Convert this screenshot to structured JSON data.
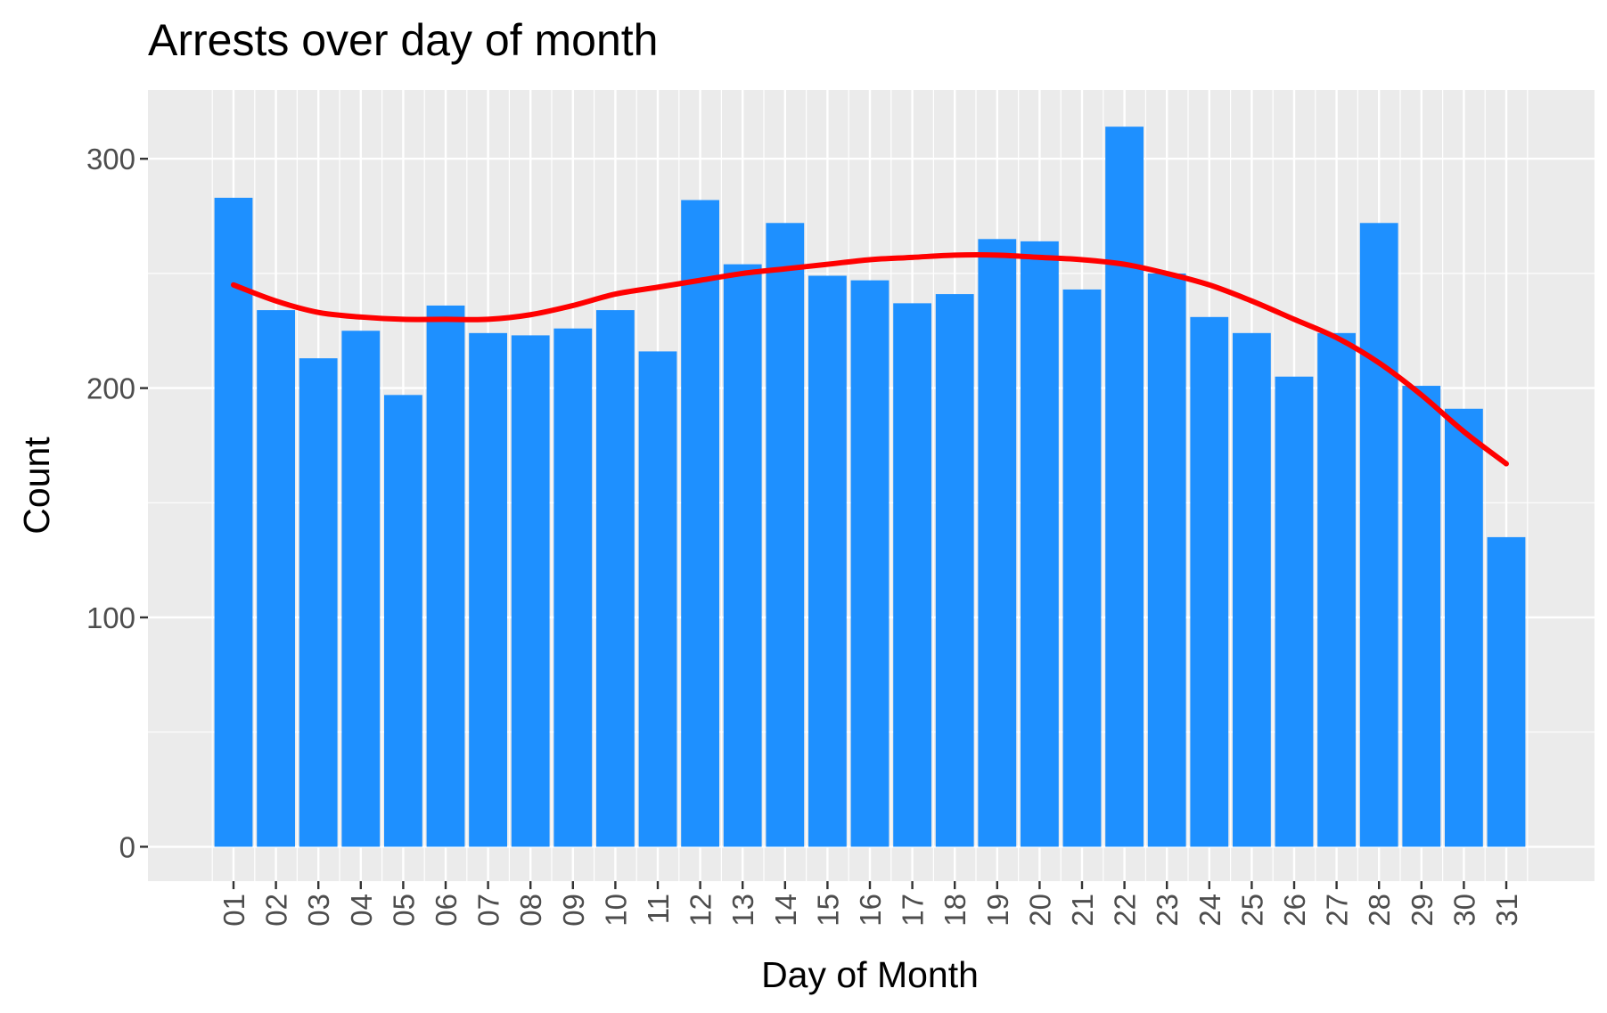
{
  "chart_data": {
    "type": "bar",
    "title": "Arrests over day of month",
    "xlabel": "Day of Month",
    "ylabel": "Count",
    "categories": [
      "01",
      "02",
      "03",
      "04",
      "05",
      "06",
      "07",
      "08",
      "09",
      "10",
      "11",
      "12",
      "13",
      "14",
      "15",
      "16",
      "17",
      "18",
      "19",
      "20",
      "21",
      "22",
      "23",
      "24",
      "25",
      "26",
      "27",
      "28",
      "29",
      "30",
      "31"
    ],
    "values": [
      283,
      234,
      213,
      225,
      197,
      236,
      224,
      223,
      226,
      234,
      216,
      282,
      254,
      272,
      249,
      247,
      237,
      241,
      265,
      264,
      243,
      314,
      250,
      231,
      224,
      205,
      224,
      272,
      201,
      191,
      135
    ],
    "smooth": [
      245,
      238,
      233,
      231,
      230,
      230,
      230,
      232,
      236,
      241,
      244,
      247,
      250,
      252,
      254,
      256,
      257,
      258,
      258,
      257,
      256,
      254,
      250,
      245,
      238,
      230,
      222,
      211,
      197,
      181,
      167
    ],
    "ylim": [
      -15,
      330
    ],
    "yticks": [
      0,
      100,
      200,
      300
    ],
    "grid": true,
    "legend": "none",
    "colors": {
      "bar": "#1E90FF",
      "smooth": "#FF0000",
      "panel": "#EBEBEB",
      "grid": "#FFFFFF"
    }
  }
}
